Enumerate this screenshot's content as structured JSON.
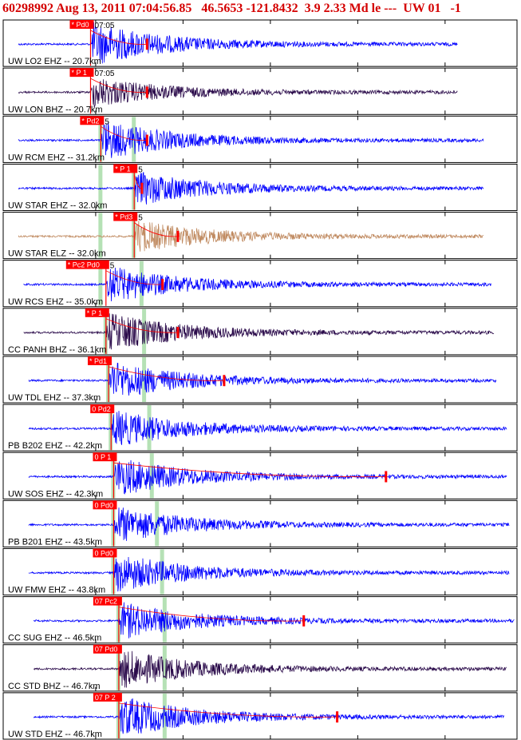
{
  "header": {
    "event_line": "60298992 Aug 13, 2011 07:04:56.85   46.5653 -121.8432  3.9 2.33 Md le ---  UW 01   -1"
  },
  "colors": {
    "header_text": "#d40000",
    "trace_blue": "#0000ff",
    "trace_dark": "#2a0a4a",
    "trace_tan": "#c08a60",
    "pick_red": "#ff0000",
    "theoretical_green": "#a8dca8",
    "panel_border": "#000000"
  },
  "panels": [
    {
      "label": "UW LO2 EHZ -- 20.7km",
      "pick": "* Pd0",
      "time": "07:05",
      "color": "blue",
      "phase": 0.17,
      "end": 0.885,
      "coda": 0.28,
      "amp": 1.0,
      "green": [],
      "trace_start": 0.03
    },
    {
      "label": "UW LON BHZ -- 20.7km",
      "pick": "* P 1",
      "time": "07:05",
      "color": "dark",
      "phase": 0.17,
      "end": 0.885,
      "coda": 0.28,
      "amp": 0.7,
      "green": [],
      "trace_start": 0.03
    },
    {
      "label": "UW RCM EHZ -- 31.2km",
      "pick": "* Pd2",
      "time": "5",
      "color": "blue",
      "phase": 0.19,
      "end": 0.935,
      "coda": 0.28,
      "amp": 0.9,
      "green": [
        0.19,
        0.255
      ],
      "trace_start": 0.03
    },
    {
      "label": "UW STAR EHZ -- 32.0km",
      "pick": "* P 1",
      "time": "5",
      "color": "blue",
      "phase": 0.255,
      "end": 0.935,
      "coda": 0.27,
      "amp": 0.8,
      "green": [
        0.19,
        0.255
      ],
      "trace_start": 0.03
    },
    {
      "label": "UW STAR ELZ -- 32.0km",
      "pick": "* Pd3",
      "time": "5",
      "color": "tan",
      "phase": 0.255,
      "end": 0.935,
      "coda": 0.34,
      "amp": 0.75,
      "green": [
        0.19,
        0.255
      ],
      "trace_start": 0.03
    },
    {
      "label": "UW RCS EHZ -- 35.0km",
      "pick": "* Pc2 Pd0",
      "time": "5",
      "color": "blue",
      "phase": 0.2,
      "end": 0.95,
      "coda": 0.31,
      "amp": 0.85,
      "green": [
        0.19,
        0.27
      ],
      "trace_start": 0.04
    },
    {
      "label": "CC PANH BHZ -- 36.1km",
      "pick": "* P 1",
      "time": "",
      "color": "dark",
      "phase": 0.2,
      "end": 0.955,
      "coda": 0.34,
      "amp": 0.9,
      "green": [
        0.2,
        0.275
      ],
      "trace_start": 0.04
    },
    {
      "label": "UW TDL EHZ -- 37.3km",
      "pick": "* Pd1",
      "time": "",
      "color": "blue",
      "phase": 0.205,
      "end": 0.96,
      "coda": 0.43,
      "amp": 0.9,
      "green": [
        0.205,
        0.275
      ],
      "trace_start": 0.05
    },
    {
      "label": "PB B202 EHZ -- 42.2km",
      "pick": "0 Pd2",
      "time": "",
      "color": "blue",
      "phase": 0.21,
      "end": 0.98,
      "coda": null,
      "amp": 0.85,
      "green": [
        0.21,
        0.285
      ],
      "trace_start": 0.05
    },
    {
      "label": "UW SOS EHZ -- 42.3km",
      "pick": "0 P 1",
      "time": "",
      "color": "blue",
      "phase": 0.215,
      "end": 0.98,
      "coda": 0.745,
      "amp": 0.9,
      "green": [
        0.215,
        0.29
      ],
      "trace_start": 0.05
    },
    {
      "label": "PB B201 EHZ -- 43.5km",
      "pick": "0 Pd0",
      "time": "",
      "color": "blue",
      "phase": 0.215,
      "end": 0.985,
      "coda": null,
      "amp": 0.85,
      "green": [
        0.215,
        0.3
      ],
      "trace_start": 0.05
    },
    {
      "label": "UW FMW EHZ -- 43.8km",
      "pick": "0 Pd0",
      "time": "",
      "color": "blue",
      "phase": 0.215,
      "end": 0.985,
      "coda": null,
      "amp": 0.9,
      "green": [
        0.215,
        0.31
      ],
      "trace_start": 0.05
    },
    {
      "label": "CC SUG EHZ -- 46.5km",
      "pick": "07 Pc2",
      "time": "",
      "color": "blue",
      "phase": 0.225,
      "end": 0.995,
      "coda": 0.585,
      "amp": 0.85,
      "green": [
        0.225,
        0.315
      ],
      "trace_start": 0.06
    },
    {
      "label": "CC STD BHZ -- 46.7km",
      "pick": "07 Pd0",
      "time": "",
      "color": "dark",
      "phase": 0.225,
      "end": 0.98,
      "coda": null,
      "amp": 0.9,
      "green": [
        0.225,
        0.315
      ],
      "trace_start": 0.06
    },
    {
      "label": "UW STD EHZ -- 46.7km",
      "pick": "07 P 2",
      "time": "",
      "color": "blue",
      "phase": 0.225,
      "end": 0.975,
      "coda": 0.65,
      "amp": 0.95,
      "green": [
        0.225,
        0.315
      ],
      "trace_start": 0.06
    }
  ]
}
